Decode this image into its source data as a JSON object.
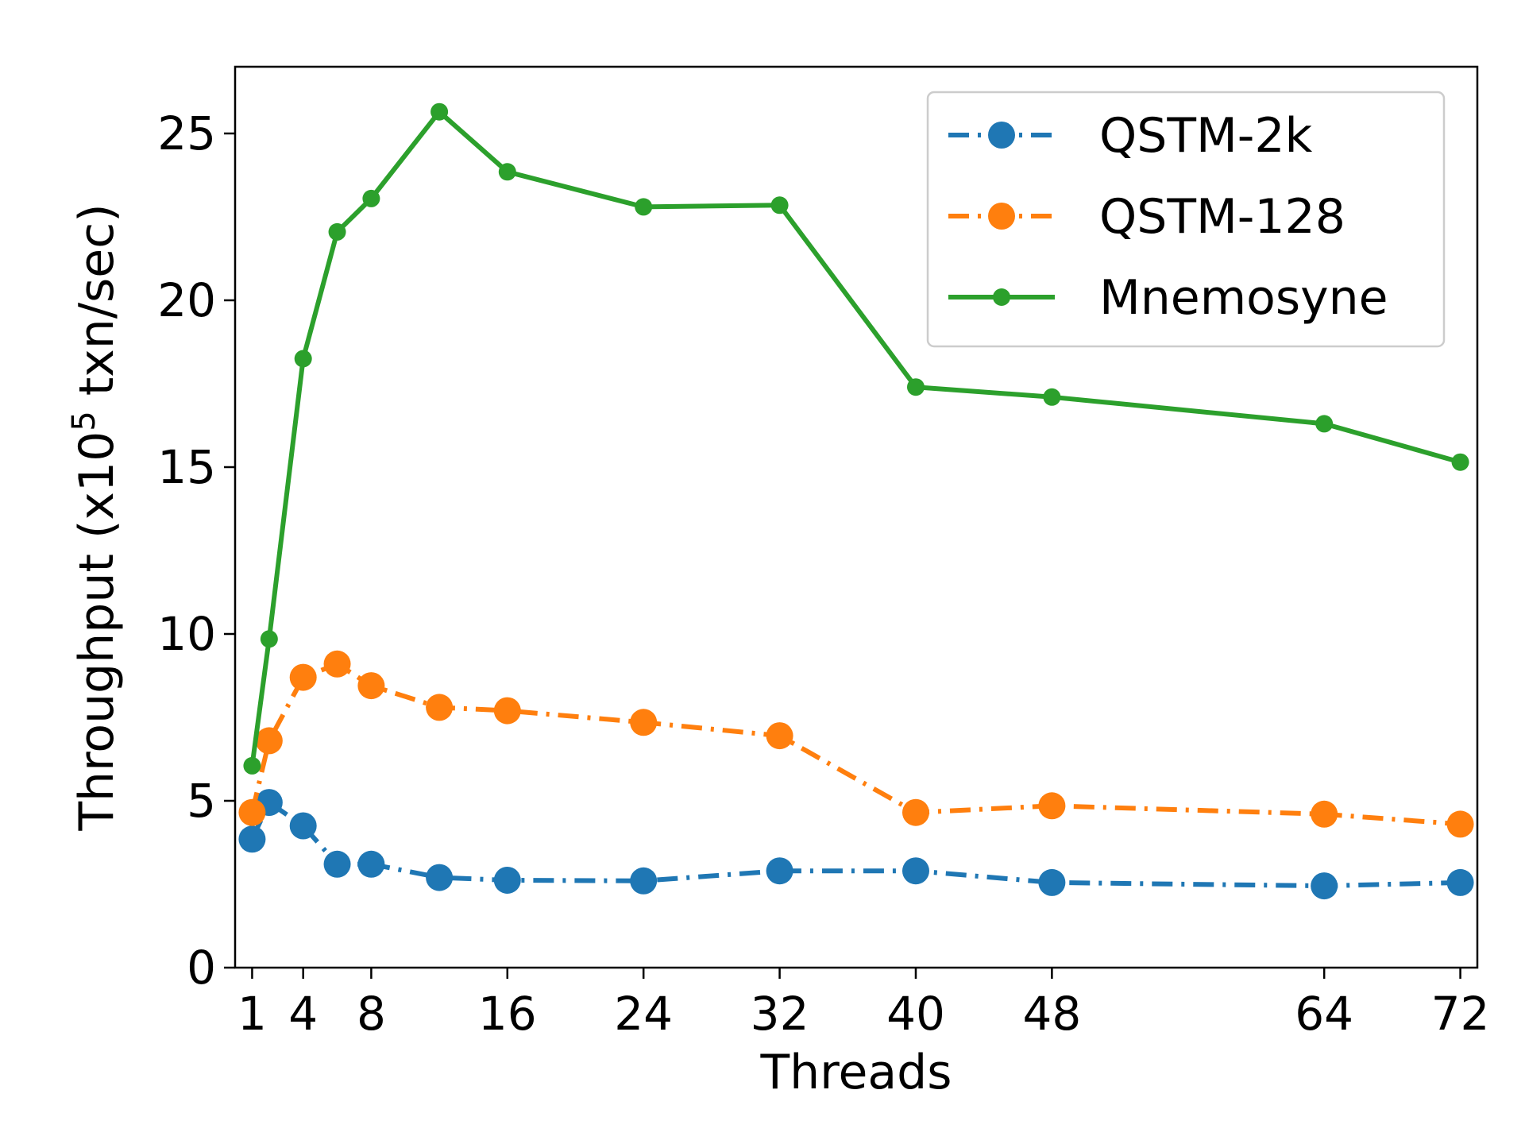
{
  "chart_data": {
    "type": "line",
    "xlabel": "Threads",
    "ylabel_main": "Throughput (x10",
    "ylabel_sup": "5",
    "ylabel_tail": " txn/sec)",
    "xlim": [
      0,
      73
    ],
    "ylim": [
      0,
      27
    ],
    "xticks": [
      1,
      4,
      8,
      16,
      24,
      32,
      40,
      48,
      64,
      72
    ],
    "yticks": [
      0,
      5,
      10,
      15,
      20,
      25
    ],
    "legend_position": "top-right",
    "grid": false,
    "x": [
      1,
      2,
      4,
      6,
      8,
      12,
      16,
      24,
      32,
      40,
      48,
      64,
      72
    ],
    "series": [
      {
        "name": "QSTM-2k",
        "color": "#1f77b4",
        "linestyle": "dashdot",
        "marker": "large-circle",
        "values": [
          3.85,
          4.95,
          4.25,
          3.1,
          3.1,
          2.7,
          2.62,
          2.6,
          2.9,
          2.9,
          2.55,
          2.45,
          2.55
        ]
      },
      {
        "name": "QSTM-128",
        "color": "#ff7f0e",
        "linestyle": "dashdot",
        "marker": "large-circle",
        "values": [
          4.65,
          6.8,
          8.7,
          9.1,
          8.45,
          7.8,
          7.7,
          7.35,
          6.95,
          4.65,
          4.85,
          4.6,
          4.3
        ]
      },
      {
        "name": "Mnemosyne",
        "color": "#2ca02c",
        "linestyle": "solid",
        "marker": "small-circle",
        "values": [
          6.05,
          9.85,
          18.25,
          22.05,
          23.05,
          25.65,
          23.85,
          22.8,
          22.85,
          17.4,
          17.1,
          16.3,
          15.15
        ]
      }
    ]
  }
}
